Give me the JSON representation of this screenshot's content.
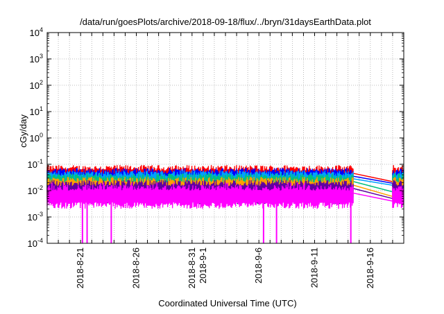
{
  "chart_data": {
    "type": "line",
    "title": "/data/run/goesPlots/archive/2018-09-18/flux/../bryn/31daysEarthData.plot",
    "xlabel": "Coordinated Universal Time (UTC)",
    "ylabel": "cGy/day",
    "yscale": "log",
    "ylim": [
      0.0001,
      10000
    ],
    "xlim": [
      "2018-08-18",
      "2018-09-19"
    ],
    "grid": true,
    "legend": "none",
    "y_tick_labels": [
      {
        "base": "10",
        "exp": "-4",
        "value": 0.0001
      },
      {
        "base": "10",
        "exp": "-3",
        "value": 0.001
      },
      {
        "base": "10",
        "exp": "-2",
        "value": 0.01
      },
      {
        "base": "10",
        "exp": "-1",
        "value": 0.1
      },
      {
        "base": "10",
        "exp": "0",
        "value": 1
      },
      {
        "base": "10",
        "exp": "1",
        "value": 10
      },
      {
        "base": "10",
        "exp": "2",
        "value": 100
      },
      {
        "base": "10",
        "exp": "3",
        "value": 1000
      },
      {
        "base": "10",
        "exp": "4",
        "value": 10000
      }
    ],
    "x_tick_labels": [
      {
        "label": "2018-8-21",
        "date": "2018-08-21"
      },
      {
        "label": "2018-8-26",
        "date": "2018-08-26"
      },
      {
        "label": "2018-8-31",
        "date": "2018-08-31"
      },
      {
        "label": "2018-9-1",
        "date": "2018-09-01"
      },
      {
        "label": "2018-9-6",
        "date": "2018-09-06"
      },
      {
        "label": "2018-9-11",
        "date": "2018-09-11"
      },
      {
        "label": "2018-9-16",
        "date": "2018-09-16"
      }
    ],
    "x_grid_dates": [
      "2018-08-19",
      "2018-08-20",
      "2018-08-21",
      "2018-08-22",
      "2018-08-23",
      "2018-08-24",
      "2018-08-25",
      "2018-08-26",
      "2018-08-27",
      "2018-08-28",
      "2018-08-29",
      "2018-08-30",
      "2018-08-31",
      "2018-09-01",
      "2018-09-02",
      "2018-09-03",
      "2018-09-04",
      "2018-09-05",
      "2018-09-06",
      "2018-09-07",
      "2018-09-08",
      "2018-09-09",
      "2018-09-10",
      "2018-09-11",
      "2018-09-12",
      "2018-09-13",
      "2018-09-14",
      "2018-09-15",
      "2018-09-16",
      "2018-09-17",
      "2018-09-18"
    ],
    "data_start": "2018-08-18",
    "data_gap": [
      "2018-09-14T12:00",
      "2018-09-18T00:00"
    ],
    "data_end": "2018-09-19",
    "series": [
      {
        "color": "#ff0000",
        "typical": 0.045,
        "peak": 0.075,
        "after_gap": 0.022
      },
      {
        "color": "#0000ff",
        "typical": 0.035,
        "peak": 0.06,
        "after_gap": 0.019
      },
      {
        "color": "#00a0ff",
        "typical": 0.028,
        "peak": 0.05,
        "after_gap": 0.016
      },
      {
        "color": "#00c080",
        "typical": 0.022,
        "peak": 0.04,
        "after_gap": 0.009
      },
      {
        "color": "#ffa000",
        "typical": 0.016,
        "peak": 0.03,
        "after_gap": 0.006
      },
      {
        "color": "#6000a0",
        "typical": 0.012,
        "peak": 0.025,
        "after_gap": 0.005
      },
      {
        "color": "#ff00ff",
        "typical": 0.008,
        "peak": 0.02,
        "after_gap": 0.004
      }
    ],
    "magenta_dropouts": [
      "2018-08-21T04:00",
      "2018-08-21T14:00",
      "2018-08-23T18:00",
      "2018-09-06T10:00",
      "2018-09-07T14:00",
      "2018-09-14T06:00"
    ]
  }
}
